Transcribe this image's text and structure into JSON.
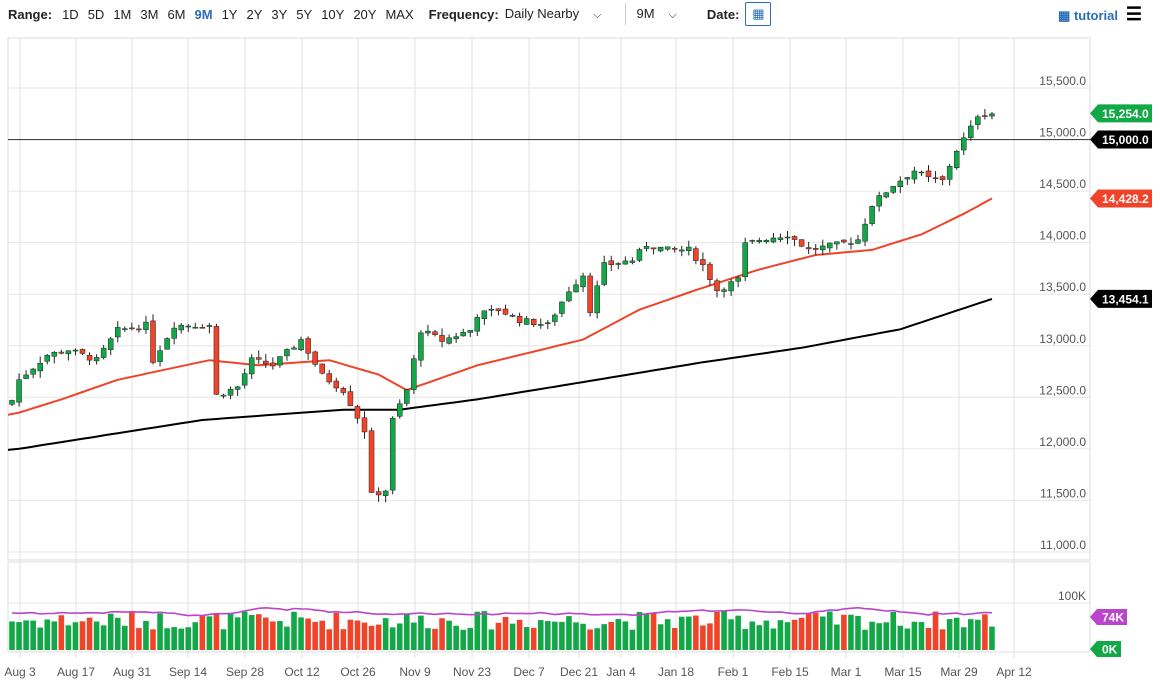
{
  "toolbar": {
    "range_label": "Range:",
    "ranges": [
      "1D",
      "5D",
      "1M",
      "3M",
      "6M",
      "9M",
      "1Y",
      "2Y",
      "3Y",
      "5Y",
      "10Y",
      "20Y",
      "MAX"
    ],
    "selected_range": "9M",
    "frequency_label": "Frequency:",
    "frequency_value": "Daily Nearby",
    "period_value": "9M",
    "date_label": "Date:",
    "tutorial": "tutorial"
  },
  "colors": {
    "up": "#12a848",
    "down": "#f0442a",
    "ma50": "#f0442a",
    "ma200": "#000000",
    "vol_ma": "#bb44cc",
    "vol_down_blue": "#2255cc"
  },
  "chart_data": {
    "type": "candlestick",
    "ylim": [
      11000,
      15700
    ],
    "yticks": [
      "15,500.0",
      "15,000.0",
      "14,500.0",
      "14,000.0",
      "13,500.0",
      "13,000.0",
      "12,500.0",
      "12,000.0",
      "11,500.0",
      "11,000.0"
    ],
    "ytick_values": [
      15500,
      15000,
      14500,
      14000,
      13500,
      13000,
      12500,
      12000,
      11500,
      11000
    ],
    "xticks": [
      "Aug 3",
      "Aug 17",
      "Aug 31",
      "Sep 14",
      "Sep 28",
      "Oct 12",
      "Oct 26",
      "Nov 9",
      "Nov 23",
      "Dec 7",
      "Dec 21",
      "Jan 4",
      "Jan 18",
      "Feb 1",
      "Feb 15",
      "Mar 1",
      "Mar 15",
      "Mar 29",
      "Apr 12"
    ],
    "n_days": 140,
    "close_keypoints": [
      [
        0,
        12470
      ],
      [
        1,
        12670
      ],
      [
        5,
        12910
      ],
      [
        8,
        12960
      ],
      [
        12,
        12860
      ],
      [
        15,
        13150
      ],
      [
        19,
        13200
      ],
      [
        20,
        12860
      ],
      [
        23,
        13200
      ],
      [
        28,
        13200
      ],
      [
        29,
        12520
      ],
      [
        32,
        12600
      ],
      [
        34,
        12860
      ],
      [
        37,
        12810
      ],
      [
        41,
        13060
      ],
      [
        44,
        12710
      ],
      [
        47,
        12570
      ],
      [
        50,
        12180
      ],
      [
        51,
        11550
      ],
      [
        53,
        11600
      ],
      [
        54,
        12280
      ],
      [
        56,
        12570
      ],
      [
        58,
        13150
      ],
      [
        61,
        13050
      ],
      [
        65,
        13150
      ],
      [
        66,
        13300
      ],
      [
        69,
        13350
      ],
      [
        72,
        13250
      ],
      [
        76,
        13200
      ],
      [
        79,
        13540
      ],
      [
        81,
        13690
      ],
      [
        82,
        13350
      ],
      [
        84,
        13780
      ],
      [
        88,
        13830
      ],
      [
        90,
        13980
      ],
      [
        93,
        13930
      ],
      [
        96,
        13930
      ],
      [
        98,
        13780
      ],
      [
        100,
        13540
      ],
      [
        103,
        13640
      ],
      [
        104,
        13980
      ],
      [
        106,
        14030
      ],
      [
        110,
        14080
      ],
      [
        113,
        13930
      ],
      [
        117,
        13980
      ],
      [
        120,
        14030
      ],
      [
        122,
        14370
      ],
      [
        125,
        14560
      ],
      [
        128,
        14700
      ],
      [
        130,
        14620
      ],
      [
        132,
        14600
      ],
      [
        134,
        14900
      ],
      [
        136,
        15110
      ],
      [
        137,
        15240
      ],
      [
        139,
        15254
      ]
    ],
    "ma50_keypoints": [
      [
        0,
        12330
      ],
      [
        7,
        12480
      ],
      [
        15,
        12670
      ],
      [
        28,
        12860
      ],
      [
        35,
        12810
      ],
      [
        45,
        12860
      ],
      [
        52,
        12720
      ],
      [
        56,
        12570
      ],
      [
        66,
        12810
      ],
      [
        72,
        12910
      ],
      [
        81,
        13060
      ],
      [
        89,
        13350
      ],
      [
        97,
        13540
      ],
      [
        106,
        13740
      ],
      [
        114,
        13880
      ],
      [
        122,
        13930
      ],
      [
        129,
        14080
      ],
      [
        135,
        14280
      ],
      [
        139,
        14428
      ]
    ],
    "ma200_keypoints": [
      [
        0,
        11990
      ],
      [
        13,
        12130
      ],
      [
        27,
        12280
      ],
      [
        47,
        12380
      ],
      [
        55,
        12380
      ],
      [
        66,
        12480
      ],
      [
        83,
        12670
      ],
      [
        98,
        12840
      ],
      [
        112,
        12980
      ],
      [
        126,
        13160
      ],
      [
        139,
        13454
      ]
    ],
    "hline": 15000,
    "labels": {
      "last": "15,254.0",
      "hline": "15,000.0",
      "ma50": "14,428.2",
      "ma200": "13,454.1"
    },
    "volume": {
      "ticks": [
        "100K"
      ],
      "labels": {
        "vol_ma": "74K",
        "zero": "0K"
      },
      "range_k": [
        0,
        100
      ],
      "base_k": 55,
      "spread_k": 40,
      "ma_k": 76
    }
  }
}
